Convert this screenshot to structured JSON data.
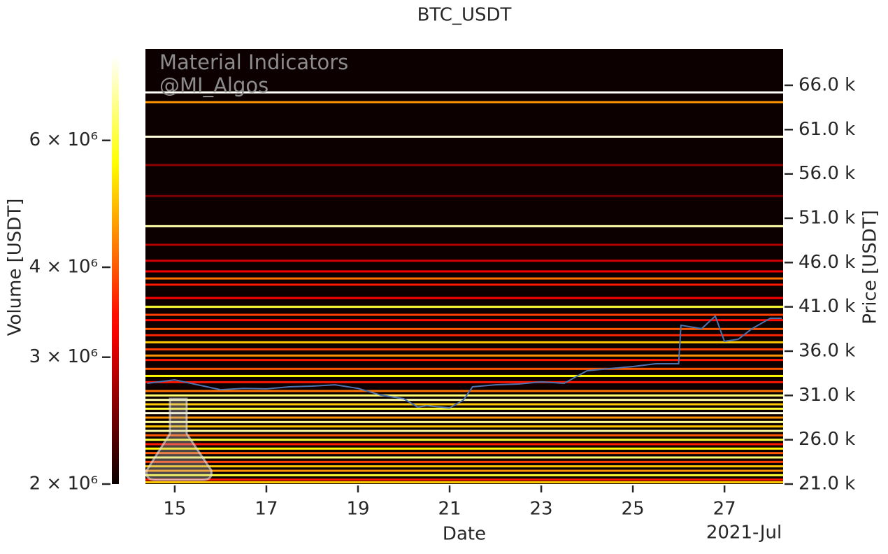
{
  "chart_data": {
    "type": "heatmap",
    "title": "BTC_USDT",
    "x_label": "Date",
    "y_label": "Price [USDT]",
    "colorbar_label": "Volume [USDT]",
    "x_offset_label": "2021-Jul",
    "watermark": [
      "Material Indicators",
      "@MI_Algos"
    ],
    "colormap": "hot",
    "background": "#0d0000",
    "xlim": [
      14.36,
      28.28
    ],
    "xticks": [
      15,
      17,
      19,
      21,
      23,
      25,
      27
    ],
    "ylim": [
      21000,
      70100
    ],
    "yticks": [
      {
        "value": 21000,
        "label": "21.0 k"
      },
      {
        "value": 26000,
        "label": "26.0 k"
      },
      {
        "value": 31000,
        "label": "31.0 k"
      },
      {
        "value": 36000,
        "label": "36.0 k"
      },
      {
        "value": 41000,
        "label": "41.0 k"
      },
      {
        "value": 46000,
        "label": "46.0 k"
      },
      {
        "value": 51000,
        "label": "51.0 k"
      },
      {
        "value": 56000,
        "label": "56.0 k"
      },
      {
        "value": 61000,
        "label": "61.0 k"
      },
      {
        "value": 66000,
        "label": "66.0 k"
      }
    ],
    "clim": [
      2000000,
      7860000
    ],
    "color_scale": "log",
    "cticks": [
      {
        "value": 2000000,
        "label": "2 × 10⁶"
      },
      {
        "value": 3000000,
        "label": "3 × 10⁶"
      },
      {
        "value": 4000000,
        "label": "4 × 10⁶"
      },
      {
        "value": 6000000,
        "label": "6 × 10⁶"
      }
    ],
    "levels": {
      "prices": [
        65200,
        64100,
        60200,
        57000,
        53500,
        50100,
        48000,
        46200,
        45000,
        44200,
        43500,
        42000,
        41000,
        40100,
        39500,
        38500,
        37800,
        37000,
        36200,
        35500,
        35000,
        34000,
        33200,
        32500,
        31500,
        31000,
        30500,
        30000,
        29500,
        29000,
        28500,
        28000,
        27500,
        27000,
        26500,
        26000,
        25500,
        25000,
        24500,
        24000,
        23500,
        23000,
        22500,
        22000,
        21500,
        21200
      ],
      "volumes": [
        7800000,
        4500000,
        7500000,
        2600000,
        2500000,
        7000000,
        2800000,
        3000000,
        3200000,
        4200000,
        3500000,
        3300000,
        6000000,
        3800000,
        3400000,
        4000000,
        3600000,
        5000000,
        3800000,
        4500000,
        3500000,
        4000000,
        5500000,
        3500000,
        4200000,
        6500000,
        7000000,
        5000000,
        6000000,
        7500000,
        4500000,
        6800000,
        5000000,
        7000000,
        4000000,
        6000000,
        3500000,
        5500000,
        4000000,
        6500000,
        3800000,
        5000000,
        4500000,
        6000000,
        3500000,
        5000000
      ]
    },
    "series": [
      {
        "name": "Price",
        "color": "#4c72b0",
        "x": [
          14.4,
          15.0,
          15.5,
          16.0,
          16.5,
          17.0,
          17.5,
          18.0,
          18.5,
          19.0,
          19.5,
          20.0,
          20.3,
          20.5,
          21.0,
          21.3,
          21.5,
          22.0,
          22.5,
          23.0,
          23.5,
          24.0,
          24.5,
          25.0,
          25.5,
          26.0,
          26.05,
          26.5,
          26.8,
          27.0,
          27.3,
          27.6,
          28.0,
          28.25
        ],
        "values": [
          32370,
          32760,
          32200,
          31650,
          31800,
          31740,
          31970,
          32050,
          32200,
          31800,
          31030,
          30630,
          29690,
          29840,
          29600,
          30470,
          31970,
          32200,
          32290,
          32530,
          32370,
          33790,
          34030,
          34260,
          34580,
          34580,
          38920,
          38530,
          39950,
          37100,
          37340,
          38530,
          39710,
          39710
        ]
      }
    ]
  }
}
